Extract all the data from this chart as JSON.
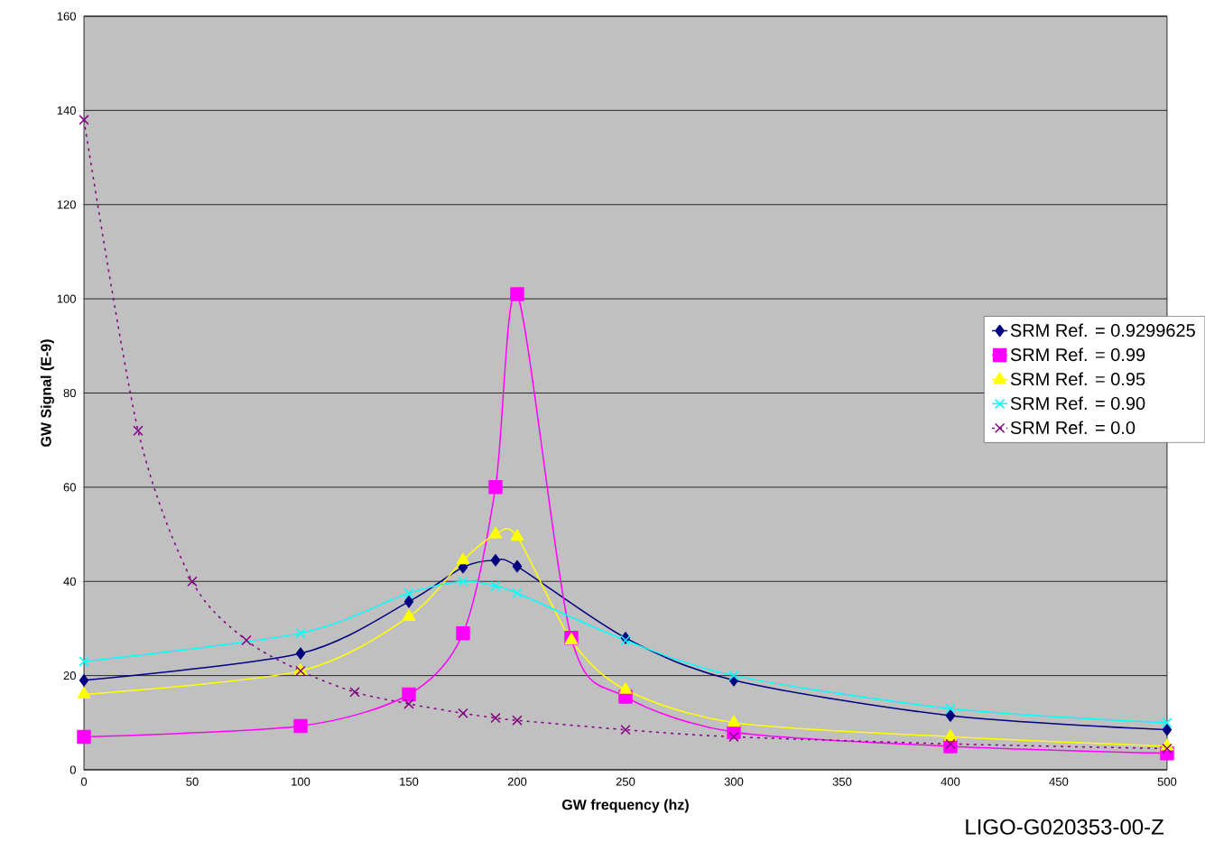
{
  "chart_data": {
    "type": "line",
    "xlabel": "GW frequency (hz)",
    "ylabel": "GW Signal (E-9)",
    "xlim": [
      0,
      500
    ],
    "xticks": [
      0,
      50,
      100,
      150,
      200,
      250,
      300,
      350,
      400,
      450,
      500
    ],
    "ylim": [
      0,
      160
    ],
    "yticks": [
      0,
      20,
      40,
      60,
      80,
      100,
      120,
      140,
      160
    ],
    "grid": "y",
    "legend": "right",
    "annotations": [
      "LIGO-G020353-00-Z"
    ],
    "series": [
      {
        "name": "SRM Ref. = 0.9299625",
        "color": "#000080",
        "marker": "diamond",
        "line_style": "solid",
        "x": [
          0,
          100,
          150,
          175,
          190,
          200,
          250,
          300,
          400,
          500
        ],
        "values": [
          19,
          24.7,
          35.7,
          43,
          44.5,
          43.2,
          28,
          19,
          11.5,
          8.5
        ]
      },
      {
        "name": "SRM Ref. = 0.99",
        "color": "#ff00ff",
        "marker": "square",
        "line_style": "solid",
        "x": [
          0,
          100,
          150,
          175,
          190,
          200,
          225,
          250,
          300,
          400,
          500
        ],
        "values": [
          7,
          9.3,
          16,
          29,
          60,
          101,
          28,
          15.5,
          8,
          5,
          3.5
        ]
      },
      {
        "name": "SRM Ref. = 0.95",
        "color": "#ffff00",
        "marker": "triangle",
        "line_style": "solid",
        "x": [
          0,
          100,
          150,
          175,
          190,
          200,
          225,
          250,
          300,
          400,
          500
        ],
        "values": [
          16,
          21,
          32.5,
          44.5,
          50,
          49.5,
          27.5,
          17,
          10,
          7,
          5
        ]
      },
      {
        "name": "SRM Ref. = 0.90",
        "color": "#00ffff",
        "marker": "cross",
        "line_style": "solid",
        "x": [
          0,
          100,
          150,
          175,
          190,
          200,
          250,
          300,
          400,
          500
        ],
        "values": [
          23,
          29,
          37.5,
          40,
          39,
          37.5,
          27.5,
          20,
          13,
          10
        ]
      },
      {
        "name": "SRM Ref. = 0.0",
        "color": "#800080",
        "marker": "cross",
        "line_style": "dotted",
        "x": [
          0,
          25,
          50,
          75,
          100,
          125,
          150,
          175,
          190,
          200,
          250,
          300,
          400,
          500
        ],
        "values": [
          138,
          72,
          40,
          27.5,
          21,
          16.5,
          14,
          12,
          11,
          10.5,
          8.5,
          7,
          5.5,
          4.5
        ]
      }
    ]
  }
}
